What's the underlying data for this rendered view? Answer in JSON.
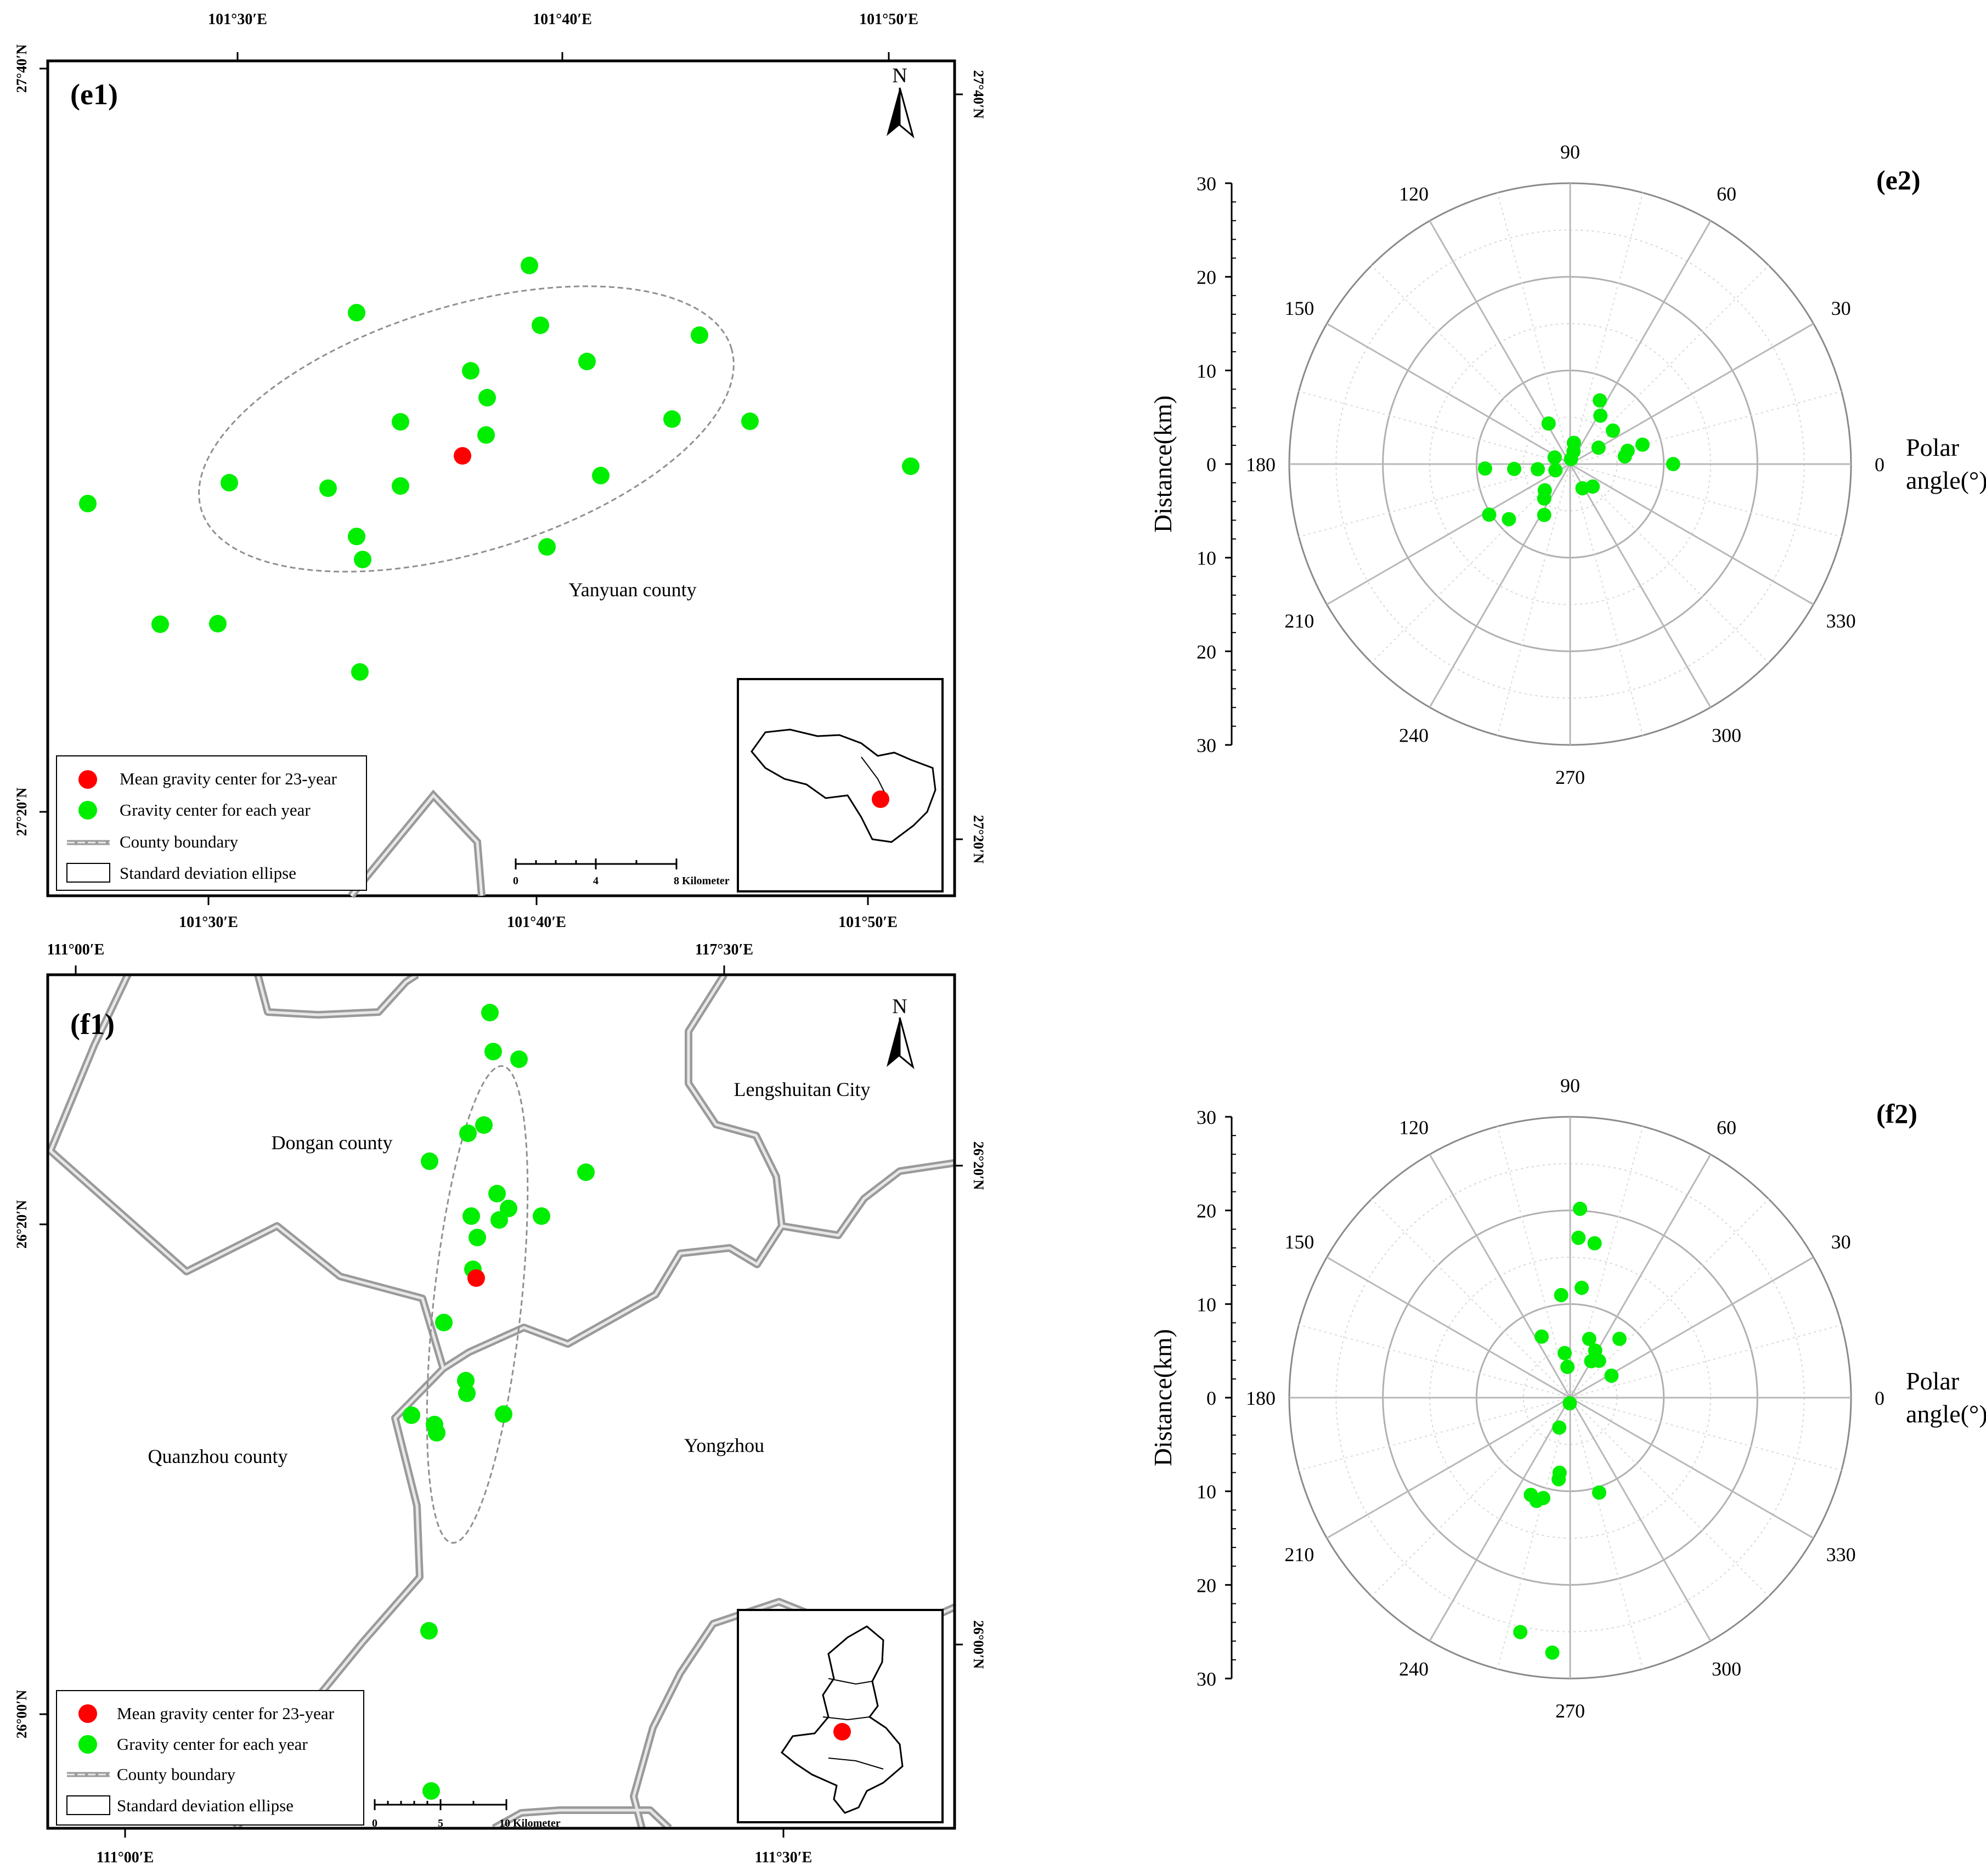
{
  "colors": {
    "mean_center": "#ff0000",
    "yearly_center": "#00ee00",
    "boundary_outer": "#9a9a9a",
    "boundary_inner": "#e8e8e8",
    "ellipse": "#909090",
    "frame": "#000000",
    "polar_grid": "#bdbdbd"
  },
  "panel_e1": {
    "label": "(e1)",
    "north": "N",
    "top_lon_labels": [
      "101°30′E",
      "101°40′E",
      "101°50′E"
    ],
    "bottom_lon_labels": [
      "101°30′E",
      "101°40′E",
      "101°50′E"
    ],
    "left_lat_labels": [
      "27°40′N",
      "27°20′N"
    ],
    "right_lat_labels": [
      "27°40′N",
      "27°20′N"
    ],
    "place_labels": [
      "Yanyuan county"
    ],
    "scale_bar": [
      "0",
      "4",
      "8 Kilometer"
    ],
    "legend": [
      {
        "symbol": "red-dot",
        "text": "Mean gravity center for 23-year"
      },
      {
        "symbol": "green-dot",
        "text": "Gravity center for each year"
      },
      {
        "symbol": "boundary-line",
        "text": "County boundary"
      },
      {
        "symbol": "box",
        "text": "Standard deviation ellipse"
      }
    ]
  },
  "panel_f1": {
    "label": "(f1)",
    "north": "N",
    "top_lon_labels": [
      "111°00′E",
      "117°30′E"
    ],
    "bottom_lon_labels": [
      "111°00′E",
      "111°30′E"
    ],
    "left_lat_labels": [
      "26°20′N",
      "26°00′N"
    ],
    "right_lat_labels": [
      "26°20′N",
      "26°00′N"
    ],
    "place_labels": [
      "Lengshuitan City",
      "Dongan county",
      "Quanzhou county",
      "Yongzhou"
    ],
    "scale_bar": [
      "0",
      "5",
      "10 Kilometer"
    ],
    "legend": [
      {
        "symbol": "red-dot",
        "text": "Mean gravity center for 23-year"
      },
      {
        "symbol": "green-dot",
        "text": "Gravity center for each year"
      },
      {
        "symbol": "boundary-line",
        "text": "County boundary"
      },
      {
        "symbol": "box",
        "text": "Standard deviation ellipse"
      }
    ]
  },
  "chart_data": [
    {
      "type": "scatter",
      "coordinate_system": "polar",
      "title": "(e2)",
      "ylabel": "Distance(km)",
      "angle_label": [
        "Polar",
        "angle(°)"
      ],
      "radial_range": [
        0,
        30
      ],
      "radial_ticks_upper": [
        "30",
        "20",
        "10",
        "0"
      ],
      "radial_ticks_lower": [
        "10",
        "20",
        "30"
      ],
      "angle_ticks": [
        "0",
        "30",
        "60",
        "90",
        "120",
        "150",
        "180",
        "210",
        "240",
        "270",
        "300",
        "330"
      ],
      "series": [
        {
          "points": [
            {
              "angle": 0,
              "distance": 11
            },
            {
              "angle": 58,
              "distance": 6.1
            },
            {
              "angle": 65,
              "distance": 7.5
            },
            {
              "angle": 38,
              "distance": 5.8
            },
            {
              "angle": 15,
              "distance": 8
            },
            {
              "angle": 13,
              "distance": 6.3
            },
            {
              "angle": 8,
              "distance": 5.9
            },
            {
              "angle": 30,
              "distance": 3.5
            },
            {
              "angle": 80,
              "distance": 2.3
            },
            {
              "angle": 75,
              "distance": 1.4
            },
            {
              "angle": 80,
              "distance": 0.55
            },
            {
              "angle": 118,
              "distance": 4.9
            },
            {
              "angle": 157,
              "distance": 1.8
            },
            {
              "angle": 203,
              "distance": 1.7
            },
            {
              "angle": 189,
              "distance": 3.5
            },
            {
              "angle": 183,
              "distance": 9.1
            },
            {
              "angle": 185,
              "distance": 6
            },
            {
              "angle": 212,
              "distance": 10.2
            },
            {
              "angle": 222,
              "distance": 8.8
            },
            {
              "angle": 226,
              "distance": 3.9
            },
            {
              "angle": 233,
              "distance": 4.6
            },
            {
              "angle": 243,
              "distance": 6.1
            },
            {
              "angle": 297,
              "distance": 2.9
            },
            {
              "angle": 315,
              "distance": 3.4
            }
          ]
        }
      ]
    },
    {
      "type": "scatter",
      "coordinate_system": "polar",
      "title": "(f2)",
      "ylabel": "Distance(km)",
      "angle_label": [
        "Polar",
        "angle(°)"
      ],
      "radial_range": [
        0,
        30
      ],
      "radial_ticks_upper": [
        "30",
        "20",
        "10",
        "0"
      ],
      "radial_ticks_lower": [
        "10",
        "20",
        "30"
      ],
      "angle_ticks": [
        "0",
        "30",
        "60",
        "90",
        "120",
        "150",
        "180",
        "210",
        "240",
        "270",
        "300",
        "330"
      ],
      "series": [
        {
          "points": [
            {
              "angle": 87,
              "distance": 20.2
            },
            {
              "angle": 87,
              "distance": 17.1
            },
            {
              "angle": 81,
              "distance": 16.7
            },
            {
              "angle": 84,
              "distance": 11.8
            },
            {
              "angle": 95,
              "distance": 11
            },
            {
              "angle": 115,
              "distance": 7.2
            },
            {
              "angle": 50,
              "distance": 8.2
            },
            {
              "angle": 72,
              "distance": 6.6
            },
            {
              "angle": 62,
              "distance": 5.7
            },
            {
              "angle": 52,
              "distance": 5
            },
            {
              "angle": 97,
              "distance": 4.8
            },
            {
              "angle": 95,
              "distance": 3.3
            },
            {
              "angle": 60,
              "distance": 4.5
            },
            {
              "angle": 28,
              "distance": 5
            },
            {
              "angle": 266,
              "distance": 0.6
            },
            {
              "angle": 250,
              "distance": 3.4
            },
            {
              "angle": 262,
              "distance": 8.1
            },
            {
              "angle": 262,
              "distance": 8.8
            },
            {
              "angle": 255,
              "distance": 11.1
            },
            {
              "angle": 252,
              "distance": 11.6
            },
            {
              "angle": 248,
              "distance": 11.2
            },
            {
              "angle": 287,
              "distance": 10.6
            },
            {
              "angle": 266,
              "distance": 27.3
            },
            {
              "angle": 258,
              "distance": 25.6
            }
          ]
        }
      ]
    }
  ]
}
